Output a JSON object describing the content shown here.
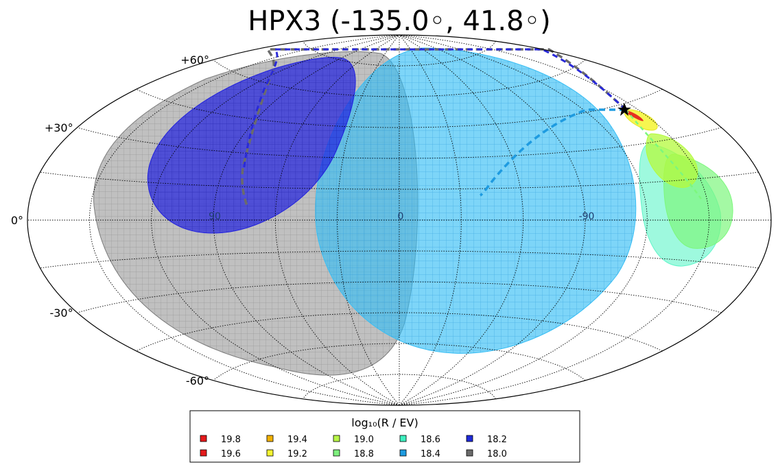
{
  "chart_data": {
    "type": "sky-map",
    "title": "HPX3 (-135.0◦, 41.8◦)",
    "projection": "aitoff",
    "grid": true,
    "lat_ticks": [
      {
        "value": 60,
        "label": "+60°"
      },
      {
        "value": 30,
        "label": "+30°"
      },
      {
        "value": 0,
        "label": "0°"
      },
      {
        "value": -30,
        "label": "-30°"
      },
      {
        "value": -60,
        "label": "-60°"
      }
    ],
    "lon_ticks": [
      {
        "value": 90,
        "label": "90"
      },
      {
        "value": 0,
        "label": "0"
      },
      {
        "value": -90,
        "label": "-90"
      }
    ],
    "legend": {
      "title": "log₁₀(R / EV)",
      "placement": "bottom",
      "entries": [
        {
          "label": "19.8",
          "color": "#e41a1c"
        },
        {
          "label": "19.6",
          "color": "#e41a1c"
        },
        {
          "label": "19.4",
          "color": "#f0b000"
        },
        {
          "label": "19.2",
          "color": "#f5f531"
        },
        {
          "label": "19.0",
          "color": "#b8f547"
        },
        {
          "label": "18.8",
          "color": "#7ef07e"
        },
        {
          "label": "18.6",
          "color": "#3ef0c0"
        },
        {
          "label": "18.4",
          "color": "#1e9be0"
        },
        {
          "label": "18.2",
          "color": "#1f2ad8"
        },
        {
          "label": "18.0",
          "color": "#6b6b6b"
        }
      ]
    },
    "source_marker": {
      "lon": -135.0,
      "lat": 41.8,
      "symbol": "star"
    },
    "regions": [
      {
        "rigidity": "18.0",
        "color": "#8c8c8c",
        "opacity": 0.55
      },
      {
        "rigidity": "18.2",
        "color": "#2020e0",
        "opacity": 0.7
      },
      {
        "rigidity": "18.4",
        "color": "#38bff5",
        "opacity": 0.65
      },
      {
        "rigidity": "18.6",
        "color": "#5ef5c8",
        "opacity": 0.6
      },
      {
        "rigidity": "18.8",
        "color": "#7df77d",
        "opacity": 0.7
      },
      {
        "rigidity": "19.0",
        "color": "#b4fa3c",
        "opacity": 0.75
      },
      {
        "rigidity": "19.2",
        "color": "#f5f531",
        "opacity": 0.85
      },
      {
        "rigidity": "19.6",
        "color": "#e41a1c",
        "opacity": 0.9
      }
    ]
  }
}
